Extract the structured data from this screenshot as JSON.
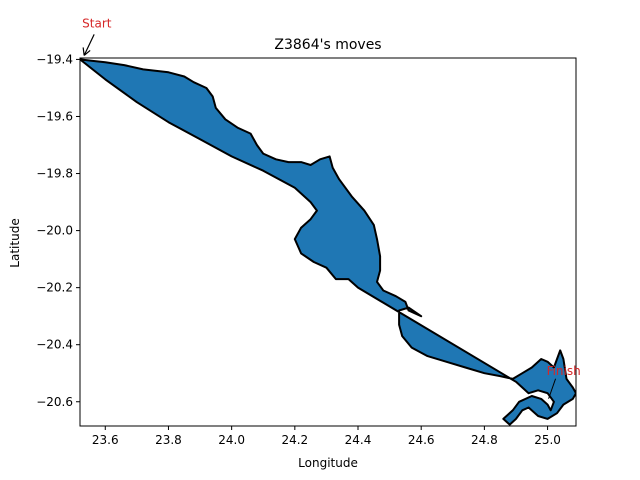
{
  "chart_data": {
    "type": "area",
    "title": "Z3864's moves",
    "xlabel": "Longitude",
    "ylabel": "Latitude",
    "xlim": [
      23.52,
      25.09
    ],
    "ylim": [
      -20.685,
      -19.395
    ],
    "x_ticks": [
      23.6,
      23.8,
      24.0,
      24.2,
      24.4,
      24.6,
      24.8,
      25.0
    ],
    "y_ticks": [
      -19.4,
      -19.6,
      -19.8,
      -20.0,
      -20.2,
      -20.4,
      -20.6
    ],
    "x_tick_labels": [
      "23.6",
      "23.8",
      "24.0",
      "24.2",
      "24.4",
      "24.6",
      "24.8",
      "25.0"
    ],
    "y_tick_labels": [
      "−19.4",
      "−19.6",
      "−19.8",
      "−20.0",
      "−20.2",
      "−20.4",
      "−20.6"
    ],
    "fill_color": "#1f77b4",
    "line_color": "#000000",
    "grid": false,
    "series": [
      {
        "points": [
          [
            23.52,
            -19.4
          ],
          [
            23.56,
            -19.405
          ],
          [
            23.6,
            -19.41
          ],
          [
            23.66,
            -19.42
          ],
          [
            23.72,
            -19.435
          ],
          [
            23.8,
            -19.445
          ],
          [
            23.85,
            -19.46
          ],
          [
            23.88,
            -19.48
          ],
          [
            23.92,
            -19.5
          ],
          [
            23.94,
            -19.53
          ],
          [
            23.95,
            -19.57
          ],
          [
            23.98,
            -19.61
          ],
          [
            24.02,
            -19.64
          ],
          [
            24.06,
            -19.66
          ],
          [
            24.08,
            -19.7
          ],
          [
            24.1,
            -19.73
          ],
          [
            24.14,
            -19.75
          ],
          [
            24.18,
            -19.76
          ],
          [
            24.22,
            -19.76
          ],
          [
            24.25,
            -19.77
          ],
          [
            24.28,
            -19.75
          ],
          [
            24.31,
            -19.74
          ],
          [
            24.32,
            -19.78
          ],
          [
            24.34,
            -19.82
          ],
          [
            24.38,
            -19.88
          ],
          [
            24.42,
            -19.93
          ],
          [
            24.45,
            -19.98
          ],
          [
            24.46,
            -20.03
          ],
          [
            24.47,
            -20.09
          ],
          [
            24.47,
            -20.14
          ],
          [
            24.46,
            -20.18
          ],
          [
            24.48,
            -20.21
          ],
          [
            24.52,
            -20.23
          ],
          [
            24.55,
            -20.25
          ],
          [
            24.56,
            -20.28
          ],
          [
            24.6,
            -20.3
          ],
          [
            24.56,
            -20.27
          ],
          [
            24.53,
            -20.28
          ],
          [
            24.53,
            -20.33
          ],
          [
            24.54,
            -20.37
          ],
          [
            24.57,
            -20.41
          ],
          [
            24.62,
            -20.44
          ],
          [
            24.68,
            -20.46
          ],
          [
            24.74,
            -20.48
          ],
          [
            24.8,
            -20.5
          ],
          [
            24.85,
            -20.51
          ],
          [
            24.89,
            -20.52
          ],
          [
            24.92,
            -20.5
          ],
          [
            24.95,
            -20.48
          ],
          [
            24.98,
            -20.45
          ],
          [
            25.0,
            -20.46
          ],
          [
            25.02,
            -20.48
          ],
          [
            25.04,
            -20.42
          ],
          [
            25.05,
            -20.45
          ],
          [
            25.06,
            -20.52
          ],
          [
            25.08,
            -20.55
          ],
          [
            25.09,
            -20.57
          ],
          [
            25.08,
            -20.59
          ],
          [
            25.05,
            -20.61
          ],
          [
            25.03,
            -20.64
          ],
          [
            25.0,
            -20.66
          ],
          [
            24.97,
            -20.65
          ],
          [
            24.94,
            -20.62
          ],
          [
            24.92,
            -20.63
          ],
          [
            24.9,
            -20.66
          ],
          [
            24.88,
            -20.68
          ],
          [
            24.86,
            -20.66
          ],
          [
            24.89,
            -20.63
          ],
          [
            24.91,
            -20.6
          ],
          [
            24.95,
            -20.58
          ],
          [
            24.98,
            -20.59
          ],
          [
            25.0,
            -20.61
          ],
          [
            25.01,
            -20.63
          ],
          [
            25.02,
            -20.6
          ],
          [
            25.0,
            -20.57
          ],
          [
            24.97,
            -20.56
          ],
          [
            24.94,
            -20.57
          ],
          [
            24.92,
            -20.55
          ],
          [
            24.9,
            -20.53
          ],
          [
            24.4,
            -20.2
          ],
          [
            24.37,
            -20.17
          ],
          [
            24.33,
            -20.17
          ],
          [
            24.3,
            -20.13
          ],
          [
            24.26,
            -20.11
          ],
          [
            24.22,
            -20.08
          ],
          [
            24.2,
            -20.03
          ],
          [
            24.22,
            -19.99
          ],
          [
            24.25,
            -19.96
          ],
          [
            24.27,
            -19.93
          ],
          [
            24.25,
            -19.9
          ],
          [
            24.2,
            -19.85
          ],
          [
            24.15,
            -19.82
          ],
          [
            24.1,
            -19.79
          ],
          [
            24.0,
            -19.74
          ],
          [
            23.9,
            -19.68
          ],
          [
            23.8,
            -19.62
          ],
          [
            23.7,
            -19.55
          ],
          [
            23.6,
            -19.47
          ],
          [
            23.52,
            -19.4
          ]
        ]
      }
    ],
    "annotations": [
      {
        "text": "Start",
        "x": 23.53,
        "y": -19.4,
        "color": "#d62728"
      },
      {
        "text": "Finish",
        "x": 25.0,
        "y": -20.6,
        "color": "#d62728"
      }
    ]
  }
}
